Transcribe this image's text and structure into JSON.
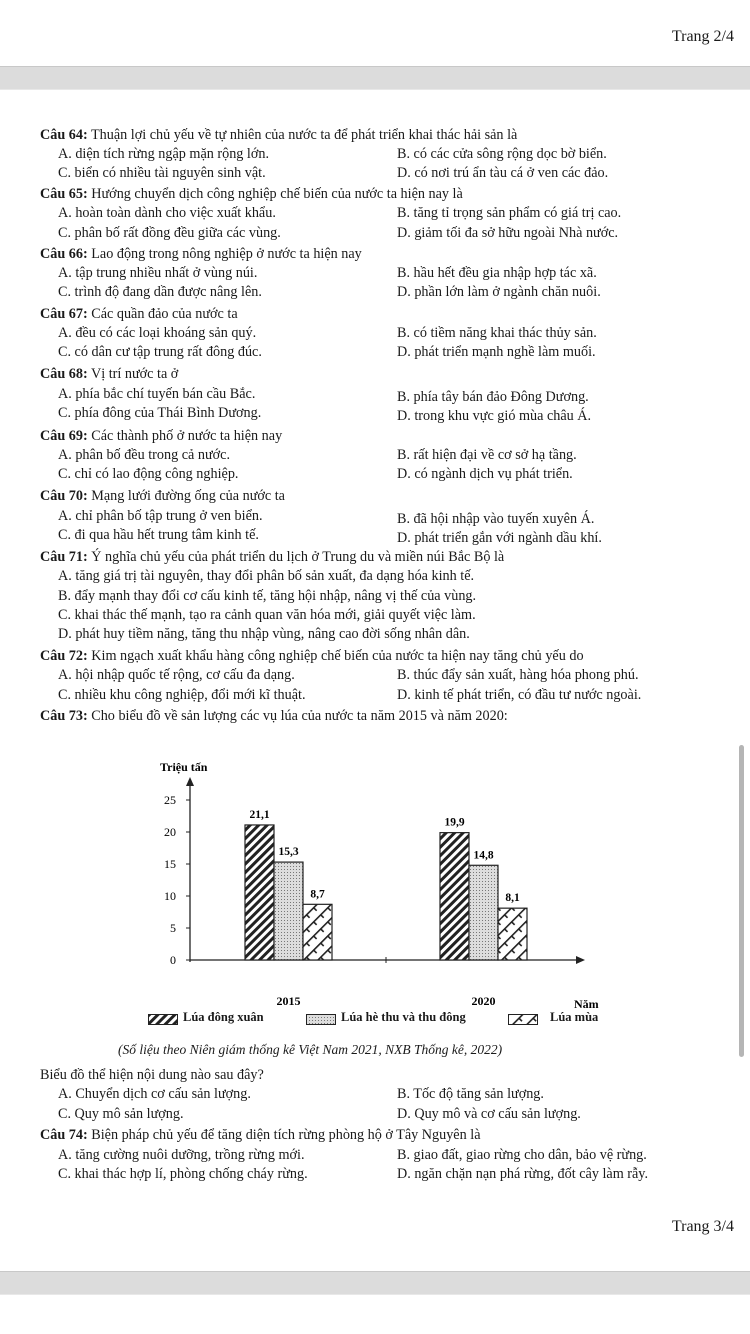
{
  "pages": {
    "prev_label": "Trang 2/4",
    "next_label": "Trang 3/4"
  },
  "questions": [
    {
      "num": "Câu 64:",
      "text": "Thuận lợi chủ yếu về tự nhiên của nước ta để phát triển khai thác hải sản là",
      "options": [
        "A. diện tích rừng ngập mặn rộng lớn.",
        "B. có các cửa sông rộng dọc bờ biển.",
        "C. biển có nhiều tài nguyên sinh vật.",
        "D. có nơi trú ẩn tàu cá ở ven các đảo."
      ]
    },
    {
      "num": "Câu 65:",
      "text": "Hướng chuyển dịch công nghiệp chế biến của nước ta hiện nay là",
      "options": [
        "A. hoàn toàn dành cho việc xuất khẩu.",
        "B. tăng tỉ trọng sản phẩm có giá trị cao.",
        "C. phân bố rất đồng đều giữa các vùng.",
        "D. giảm tối đa sở hữu ngoài Nhà nước."
      ]
    },
    {
      "num": "Câu 66:",
      "text": "Lao động trong nông nghiệp ở nước ta hiện nay",
      "options": [
        "A. tập trung nhiều nhất ở vùng núi.",
        "B. hầu hết đều gia nhập hợp tác xã.",
        "C. trình độ đang dần được nâng lên.",
        "D. phần lớn làm ở ngành chăn nuôi."
      ]
    },
    {
      "num": "Câu 67:",
      "text": "Các quần đảo của nước ta",
      "options": [
        "A. đều có các loại khoáng sản quý.",
        "B. có tiềm năng khai thác thủy sản.",
        "C. có dân cư tập trung rất đông đúc.",
        "D. phát triển mạnh nghề làm muối."
      ]
    },
    {
      "num": "Câu 68:",
      "text": "Vị trí nước ta ở",
      "options": [
        "A. phía bắc chí tuyến bán cầu Bắc.",
        "B. phía tây bán đảo Đông Dương.",
        "C. phía đông của Thái Bình Dương.",
        "D. trong khu vực gió mùa châu Á."
      ]
    },
    {
      "num": "Câu 69:",
      "text": "Các thành phố ở nước ta hiện nay",
      "options": [
        "A. phân bố đều trong cả nước.",
        "B. rất hiện đại về cơ sở hạ tầng.",
        "C. chỉ có lao động công nghiệp.",
        "D. có ngành dịch vụ phát triển."
      ]
    },
    {
      "num": "Câu 70:",
      "text": "Mạng lưới đường ống của nước ta",
      "options": [
        "A. chỉ phân bố tập trung ở ven biển.",
        "B. đã hội nhập vào tuyến xuyên Á.",
        "C. đi qua hầu hết trung tâm kinh tế.",
        "D. phát triển gắn với ngành dầu khí."
      ]
    },
    {
      "num": "Câu 71:",
      "text": "Ý nghĩa chủ yếu của phát triển du lịch ở Trung du và miền núi Bắc Bộ là",
      "options": [
        "A. tăng giá trị tài nguyên, thay đổi phân bố sản xuất, đa dạng hóa kinh tế.",
        "B. đẩy mạnh thay đổi cơ cấu kinh tế, tăng hội nhập, nâng vị thế của vùng.",
        "C. khai thác thế mạnh, tạo ra cảnh quan văn hóa mới, giải quyết việc làm.",
        "D. phát huy tiềm năng, tăng thu nhập vùng, nâng cao đời sống nhân dân."
      ]
    },
    {
      "num": "Câu 72:",
      "text": "Kim ngạch xuất khẩu hàng công nghiệp chế biến của nước ta hiện nay tăng chủ yếu do",
      "options": [
        "A. hội nhập quốc tế rộng, cơ cấu đa dạng.",
        "B. thúc đẩy sản xuất, hàng hóa phong phú.",
        "C. nhiều khu công nghiệp, đổi mới kĩ thuật.",
        "D. kinh tế phát triển, có đầu tư nước ngoài."
      ]
    },
    {
      "num": "Câu 73:",
      "text": "Cho biểu đồ về sản lượng các vụ lúa của nước ta năm 2015 và năm 2020:",
      "after": "Biểu đồ thể hiện nội dung nào sau đây?",
      "options": [
        "A. Chuyển dịch cơ cấu sản lượng.",
        "B. Tốc độ tăng sản lượng.",
        "C. Quy mô sản lượng.",
        "D. Quy mô và cơ cấu sản lượng."
      ]
    },
    {
      "num": "Câu 74:",
      "text": "Biện pháp chủ yếu để tăng diện tích rừng phòng hộ ở Tây Nguyên là",
      "options": [
        "A. tăng cường nuôi dưỡng, trồng rừng mới.",
        "B. giao đất, giao rừng cho dân, bảo vệ rừng.",
        "C. khai thác hợp lí, phòng chống cháy rừng.",
        "D. ngăn chặn nạn phá rừng, đốt cây làm rẫy."
      ]
    }
  ],
  "chart_data": {
    "type": "bar",
    "ylabel": "Triệu tấn",
    "xlabel": "Năm",
    "categories": [
      "2015",
      "2020"
    ],
    "ylim": [
      0,
      25
    ],
    "yticks": [
      "0",
      "5",
      "10",
      "15",
      "20",
      "25"
    ],
    "series": [
      {
        "name": "Lúa đông xuân",
        "values": [
          21.1,
          19.9
        ],
        "labels": [
          "21,1",
          "19,9"
        ],
        "pattern": "diagonal-hatch"
      },
      {
        "name": "Lúa hè thu và thu đông",
        "values": [
          15.3,
          14.8
        ],
        "labels": [
          "15,3",
          "14,8"
        ],
        "pattern": "dots"
      },
      {
        "name": "Lúa mùa",
        "values": [
          8.7,
          8.1
        ],
        "labels": [
          "8,7",
          "8,1"
        ],
        "pattern": "brick"
      }
    ],
    "legend": "bottom",
    "source": "(Số liệu theo Niên giám thống kê Việt Nam 2021, NXB Thống kê, 2022)"
  }
}
